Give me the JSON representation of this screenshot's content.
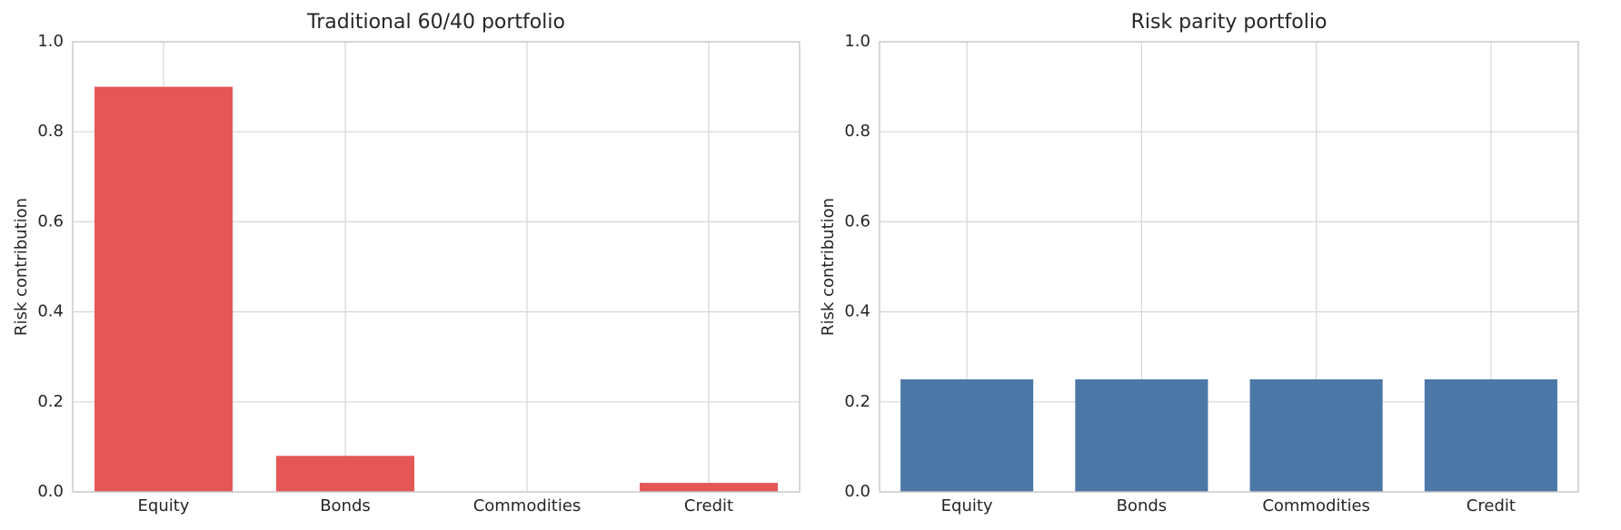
{
  "chart_data": [
    {
      "type": "bar",
      "title": "Traditional 60/40 portfolio",
      "ylabel": "Risk contribution",
      "categories": [
        "Equity",
        "Bonds",
        "Commodities",
        "Credit"
      ],
      "values": [
        0.9,
        0.08,
        0,
        0.02
      ],
      "color": "#e45756",
      "ylim": [
        0,
        1
      ],
      "yticks": [
        {
          "value": 0,
          "label": "0.0"
        },
        0.2,
        0.4,
        0.6,
        0.8,
        {
          "value": 1,
          "label": "1.0"
        }
      ],
      "grid": true
    },
    {
      "type": "bar",
      "title": "Risk parity portfolio",
      "ylabel": "Risk contribution",
      "categories": [
        "Equity",
        "Bonds",
        "Commodities",
        "Credit"
      ],
      "values": [
        0.25,
        0.25,
        0.25,
        0.25
      ],
      "color": "#4c78a8",
      "ylim": [
        0,
        1
      ],
      "yticks": [
        {
          "value": 0,
          "label": "0.0"
        },
        0.2,
        0.4,
        0.6,
        0.8,
        {
          "value": 1,
          "label": "1.0"
        }
      ],
      "grid": true
    }
  ]
}
